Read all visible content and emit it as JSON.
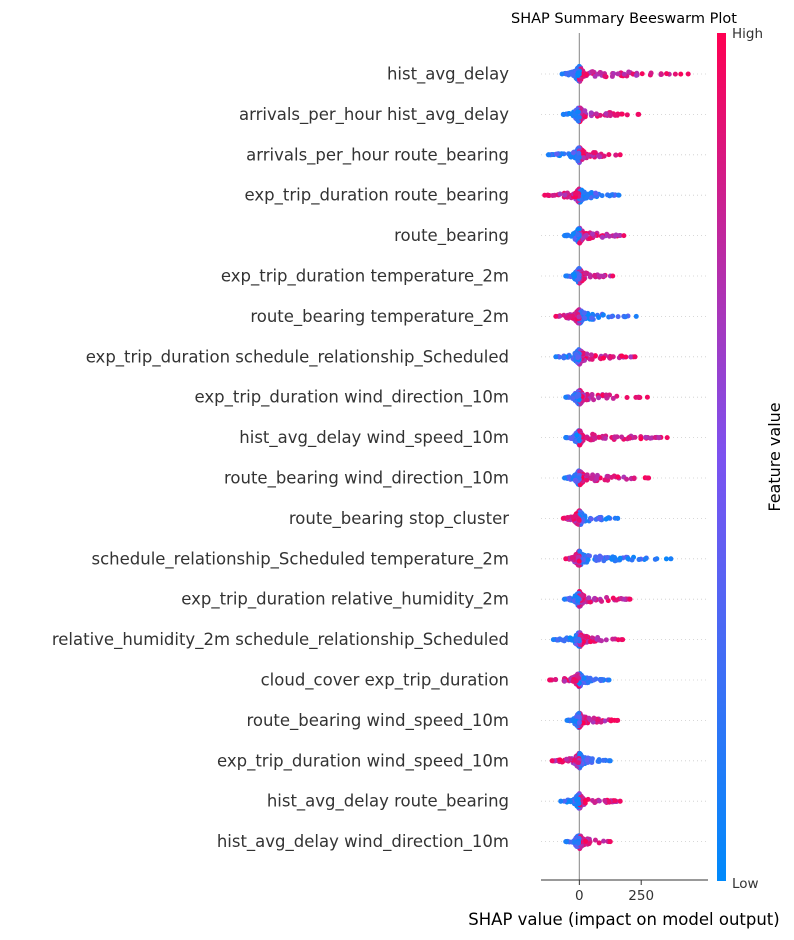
{
  "chart_data": {
    "type": "scatter",
    "subtype": "beeswarm",
    "title": "SHAP Summary Beeswarm Plot",
    "xlabel": "SHAP value (impact on model output)",
    "xlim": [
      -155,
      520
    ],
    "xticks": [
      0,
      250
    ],
    "xtick_labels": [
      "0",
      "250"
    ],
    "zero_line": true,
    "grid": false,
    "colorbar": {
      "label": "Feature value",
      "high_label": "High",
      "low_label": "Low",
      "colors": [
        "#008afb",
        "#7c52f0",
        "#ff0052"
      ]
    },
    "features": [
      {
        "name": "hist_avg_delay",
        "lo": -70,
        "hi": 440,
        "neg": 70,
        "pos": 420,
        "red_side": 1
      },
      {
        "name": "arrivals_per_hour hist_avg_delay",
        "lo": -65,
        "hi": 240,
        "neg": 65,
        "pos": 240,
        "red_side": 1
      },
      {
        "name": "arrivals_per_hour route_bearing",
        "lo": -125,
        "hi": 165,
        "neg": 125,
        "pos": 165,
        "red_side": 1
      },
      {
        "name": "exp_trip_duration route_bearing",
        "lo": -140,
        "hi": 160,
        "neg": 140,
        "pos": 160,
        "red_side": -1
      },
      {
        "name": "route_bearing",
        "lo": -60,
        "hi": 180,
        "neg": 60,
        "pos": 180,
        "red_side": 1
      },
      {
        "name": "exp_trip_duration temperature_2m",
        "lo": -55,
        "hi": 135,
        "neg": 55,
        "pos": 135,
        "red_side": 1
      },
      {
        "name": "route_bearing temperature_2m",
        "lo": -95,
        "hi": 230,
        "neg": 95,
        "pos": 230,
        "red_side": -1
      },
      {
        "name": "exp_trip_duration schedule_relationship_Scheduled",
        "lo": -95,
        "hi": 225,
        "neg": 95,
        "pos": 225,
        "red_side": 1
      },
      {
        "name": "exp_trip_duration wind_direction_10m",
        "lo": -55,
        "hi": 275,
        "neg": 55,
        "pos": 275,
        "red_side": 1
      },
      {
        "name": "hist_avg_delay wind_speed_10m",
        "lo": -55,
        "hi": 355,
        "neg": 55,
        "pos": 355,
        "red_side": 1
      },
      {
        "name": "route_bearing wind_direction_10m",
        "lo": -60,
        "hi": 280,
        "neg": 60,
        "pos": 280,
        "red_side": 1
      },
      {
        "name": "route_bearing stop_cluster",
        "lo": -65,
        "hi": 155,
        "neg": 65,
        "pos": 155,
        "red_side": -1
      },
      {
        "name": "schedule_relationship_Scheduled temperature_2m",
        "lo": -55,
        "hi": 370,
        "neg": 55,
        "pos": 370,
        "red_side": -1
      },
      {
        "name": "exp_trip_duration relative_humidity_2m",
        "lo": -60,
        "hi": 205,
        "neg": 60,
        "pos": 205,
        "red_side": 1
      },
      {
        "name": "relative_humidity_2m schedule_relationship_Scheduled",
        "lo": -105,
        "hi": 175,
        "neg": 105,
        "pos": 175,
        "red_side": 1
      },
      {
        "name": "cloud_cover exp_trip_duration",
        "lo": -120,
        "hi": 120,
        "neg": 120,
        "pos": 120,
        "red_side": -1
      },
      {
        "name": "route_bearing wind_speed_10m",
        "lo": -50,
        "hi": 155,
        "neg": 50,
        "pos": 155,
        "red_side": 1
      },
      {
        "name": "exp_trip_duration wind_speed_10m",
        "lo": -110,
        "hi": 125,
        "neg": 110,
        "pos": 125,
        "red_side": -1
      },
      {
        "name": "hist_avg_delay route_bearing",
        "lo": -75,
        "hi": 165,
        "neg": 75,
        "pos": 165,
        "red_side": 1
      },
      {
        "name": "hist_avg_delay wind_direction_10m",
        "lo": -55,
        "hi": 125,
        "neg": 55,
        "pos": 125,
        "red_side": 1
      }
    ]
  }
}
